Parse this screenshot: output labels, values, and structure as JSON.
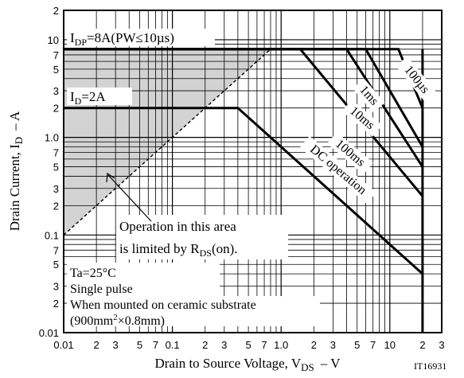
{
  "chart_data": {
    "type": "line",
    "title": "",
    "xlabel_main": "Drain to Source Voltage, V",
    "xlabel_sub": "DS",
    "xlabel_unit": "– V",
    "ylabel_main": "Drain Current, I",
    "ylabel_sub": "D",
    "ylabel_unit": "– A",
    "xscale": "log",
    "yscale": "log",
    "xlim": [
      0.01,
      30
    ],
    "ylim": [
      0.01,
      20
    ],
    "grid": true,
    "figure_id": "IT16931",
    "x_tick_labels": [
      {
        "v": 0.01,
        "t": "0.01"
      },
      {
        "v": 0.02,
        "t": "2"
      },
      {
        "v": 0.03,
        "t": "3"
      },
      {
        "v": 0.05,
        "t": "5"
      },
      {
        "v": 0.07,
        "t": "7"
      },
      {
        "v": 0.1,
        "t": "0.1"
      },
      {
        "v": 0.2,
        "t": "2"
      },
      {
        "v": 0.3,
        "t": "3"
      },
      {
        "v": 0.5,
        "t": "5"
      },
      {
        "v": 0.7,
        "t": "7"
      },
      {
        "v": 1,
        "t": "1.0"
      },
      {
        "v": 2,
        "t": "2"
      },
      {
        "v": 3,
        "t": "3"
      },
      {
        "v": 5,
        "t": "5"
      },
      {
        "v": 7,
        "t": "7"
      },
      {
        "v": 10,
        "t": "10"
      },
      {
        "v": 20,
        "t": "2"
      },
      {
        "v": 30,
        "t": "3"
      }
    ],
    "y_tick_labels": [
      {
        "v": 0.01,
        "t": "0.01"
      },
      {
        "v": 0.02,
        "t": "2"
      },
      {
        "v": 0.03,
        "t": "3"
      },
      {
        "v": 0.05,
        "t": "5"
      },
      {
        "v": 0.07,
        "t": "7"
      },
      {
        "v": 0.1,
        "t": "0.1"
      },
      {
        "v": 0.2,
        "t": "2"
      },
      {
        "v": 0.3,
        "t": "3"
      },
      {
        "v": 0.5,
        "t": "5"
      },
      {
        "v": 0.7,
        "t": "7"
      },
      {
        "v": 1,
        "t": "1.0"
      },
      {
        "v": 2,
        "t": "2"
      },
      {
        "v": 3,
        "t": "3"
      },
      {
        "v": 5,
        "t": "5"
      },
      {
        "v": 7,
        "t": "7"
      },
      {
        "v": 10,
        "t": "10"
      },
      {
        "v": 20,
        "t": "2"
      }
    ],
    "series": [
      {
        "name": "100µs",
        "points": [
          [
            0.01,
            8
          ],
          [
            12,
            8
          ],
          [
            20,
            2
          ]
        ]
      },
      {
        "name": "1ms",
        "points": [
          [
            0.01,
            8
          ],
          [
            6,
            8
          ],
          [
            20,
            0.8
          ]
        ]
      },
      {
        "name": "10ms",
        "points": [
          [
            0.01,
            8
          ],
          [
            4,
            8
          ],
          [
            20,
            0.5
          ]
        ]
      },
      {
        "name": "100ms",
        "points": [
          [
            0.01,
            8
          ],
          [
            1.5,
            8
          ],
          [
            20,
            0.25
          ]
        ]
      },
      {
        "name": "DC operation",
        "points": [
          [
            0.01,
            2
          ],
          [
            0.4,
            2
          ],
          [
            20,
            0.04
          ]
        ]
      },
      {
        "name": "",
        "points": [
          [
            20,
            8
          ],
          [
            20,
            0.01
          ]
        ]
      }
    ],
    "rds_on_limit": [
      [
        0.01,
        0.1
      ],
      [
        0.8,
        8
      ]
    ],
    "annotations": {
      "idp": "I",
      "idp_sub": "DP",
      "idp_rest": "=8A(PW≤10µs)",
      "id": "I",
      "id_sub": "D",
      "id_rest": "=2A",
      "label_100us": "100µs",
      "label_1ms": "1ms",
      "label_10ms": "10ms",
      "label_100ms": "100ms",
      "label_dc": "DC operation",
      "op_line1": "Operation in this area",
      "op_line2_pre": "is limited by R",
      "op_line2_sub": "DS",
      "op_line2_post": "(on).",
      "cond_ta": "Ta=25°C",
      "cond_pulse": "Single pulse",
      "cond_mount": "When mounted on ceramic substrate",
      "cond_size_pre": "(900mm",
      "cond_size_sup": "2",
      "cond_size_post": "×0.8mm)"
    },
    "colors": {
      "region": "#d3d3d3",
      "line": "#000000",
      "grid": "#000000"
    }
  }
}
